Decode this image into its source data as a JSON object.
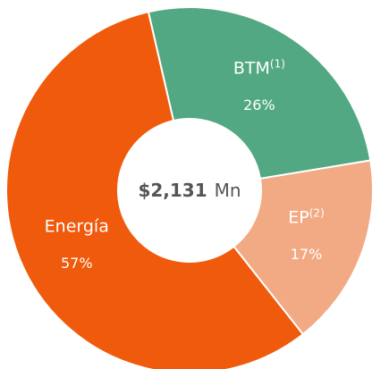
{
  "chart_data": {
    "type": "donut",
    "categories": [
      "BTM",
      "EP",
      "Energía"
    ],
    "category_notes": [
      "(1)",
      "(2)",
      null
    ],
    "values": [
      26,
      17,
      57
    ],
    "value_labels": [
      "26%",
      "17%",
      "57%"
    ],
    "colors": [
      "#52a882",
      "#f2aa85",
      "#f05a0c"
    ],
    "center_value": "$2,131",
    "center_unit": "Mn"
  }
}
